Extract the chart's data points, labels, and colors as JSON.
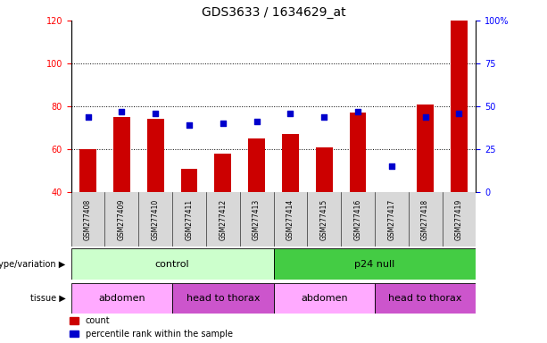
{
  "title": "GDS3633 / 1634629_at",
  "samples": [
    "GSM277408",
    "GSM277409",
    "GSM277410",
    "GSM277411",
    "GSM277412",
    "GSM277413",
    "GSM277414",
    "GSM277415",
    "GSM277416",
    "GSM277417",
    "GSM277418",
    "GSM277419"
  ],
  "count_values": [
    60,
    75,
    74,
    51,
    58,
    65,
    67,
    61,
    77,
    40,
    81,
    120
  ],
  "percentile_values": [
    44,
    47,
    46,
    39,
    40,
    41,
    46,
    44,
    47,
    15,
    44,
    46
  ],
  "bar_bottom": 40,
  "ylim_left": [
    40,
    120
  ],
  "ylim_right": [
    0,
    100
  ],
  "yticks_left": [
    40,
    60,
    80,
    100,
    120
  ],
  "yticks_right": [
    0,
    25,
    50,
    75,
    100
  ],
  "ytick_labels_right": [
    "0",
    "25",
    "50",
    "75",
    "100%"
  ],
  "bar_color": "#cc0000",
  "dot_color": "#0000cc",
  "groups": [
    {
      "label": "control",
      "start": 0,
      "end": 5,
      "color": "#ccffcc"
    },
    {
      "label": "p24 null",
      "start": 6,
      "end": 11,
      "color": "#44cc44"
    }
  ],
  "tissues": [
    {
      "label": "abdomen",
      "start": 0,
      "end": 2,
      "color": "#ffaaff"
    },
    {
      "label": "head to thorax",
      "start": 3,
      "end": 5,
      "color": "#cc55cc"
    },
    {
      "label": "abdomen",
      "start": 6,
      "end": 8,
      "color": "#ffaaff"
    },
    {
      "label": "head to thorax",
      "start": 9,
      "end": 11,
      "color": "#cc55cc"
    }
  ],
  "legend_items": [
    {
      "label": "count",
      "color": "#cc0000"
    },
    {
      "label": "percentile rank within the sample",
      "color": "#0000cc"
    }
  ],
  "row_labels": [
    "genotype/variation",
    "tissue"
  ],
  "tick_fontsize": 7,
  "title_fontsize": 10
}
